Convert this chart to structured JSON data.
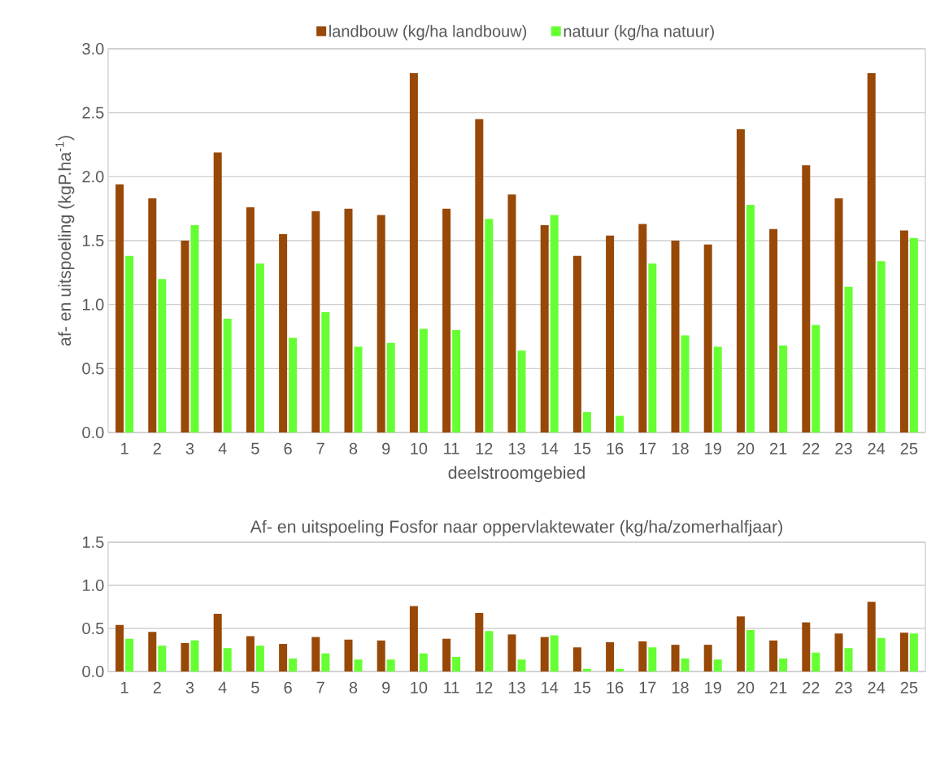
{
  "chart_data": [
    {
      "type": "bar",
      "xlabel": "deelstroomgebied",
      "ylabel": "af- en uitspoeling (kgP.ha$^{-1}$)",
      "categories": [
        "1",
        "2",
        "3",
        "4",
        "5",
        "6",
        "7",
        "8",
        "9",
        "10",
        "11",
        "12",
        "13",
        "14",
        "15",
        "16",
        "17",
        "18",
        "19",
        "20",
        "21",
        "22",
        "23",
        "24",
        "25"
      ],
      "series": [
        {
          "name": "landbouw (kg/ha landbouw)",
          "color": "#984807",
          "values": [
            1.94,
            1.83,
            1.5,
            2.19,
            1.76,
            1.55,
            1.73,
            1.75,
            1.7,
            2.81,
            1.75,
            2.45,
            1.86,
            1.62,
            1.38,
            1.54,
            1.63,
            1.5,
            1.47,
            2.37,
            1.59,
            2.09,
            1.83,
            2.81,
            1.58
          ]
        },
        {
          "name": "natuur (kg/ha natuur)",
          "color": "#66ff33",
          "values": [
            1.38,
            1.2,
            1.62,
            0.89,
            1.32,
            0.74,
            0.94,
            0.67,
            0.7,
            0.81,
            0.8,
            1.67,
            0.64,
            1.7,
            0.16,
            0.13,
            1.32,
            0.76,
            0.67,
            1.78,
            0.68,
            0.84,
            1.14,
            1.34,
            1.52
          ]
        }
      ],
      "ylim": [
        0,
        3
      ],
      "yticks": [
        {
          "value": 0,
          "label": "0.0"
        },
        {
          "value": 0.5,
          "label": "0.5"
        },
        {
          "value": 1,
          "label": "1.0"
        },
        {
          "value": 1.5,
          "label": "1.5"
        },
        {
          "value": 2,
          "label": "2.0"
        },
        {
          "value": 2.5,
          "label": "2.5"
        },
        {
          "value": 3,
          "label": "3.0"
        }
      ],
      "grid": "y",
      "legend": "top"
    },
    {
      "type": "bar",
      "title": "Af- en uitspoeling Fosfor naar oppervlaktewater (kg/ha/zomerhalfjaar)",
      "categories": [
        "1",
        "2",
        "3",
        "4",
        "5",
        "6",
        "7",
        "8",
        "9",
        "10",
        "11",
        "12",
        "13",
        "14",
        "15",
        "16",
        "17",
        "18",
        "19",
        "20",
        "21",
        "22",
        "23",
        "24",
        "25"
      ],
      "series": [
        {
          "color": "#984807",
          "values": [
            0.54,
            0.46,
            0.33,
            0.67,
            0.41,
            0.32,
            0.4,
            0.37,
            0.36,
            0.76,
            0.38,
            0.68,
            0.43,
            0.4,
            0.28,
            0.34,
            0.35,
            0.31,
            0.31,
            0.64,
            0.36,
            0.57,
            0.44,
            0.81,
            0.45
          ]
        },
        {
          "color": "#66ff33",
          "values": [
            0.38,
            0.3,
            0.36,
            0.27,
            0.3,
            0.15,
            0.21,
            0.14,
            0.14,
            0.21,
            0.17,
            0.47,
            0.14,
            0.42,
            0.03,
            0.03,
            0.28,
            0.15,
            0.14,
            0.48,
            0.15,
            0.22,
            0.27,
            0.39,
            0.44
          ]
        }
      ],
      "ylim": [
        0,
        1.5
      ],
      "yticks": [
        {
          "value": 0,
          "label": "0.0"
        },
        {
          "value": 0.5,
          "label": "0.5"
        },
        {
          "value": 1,
          "label": "1.0"
        },
        {
          "value": 1.5,
          "label": "1.5"
        }
      ],
      "grid": "y"
    }
  ]
}
